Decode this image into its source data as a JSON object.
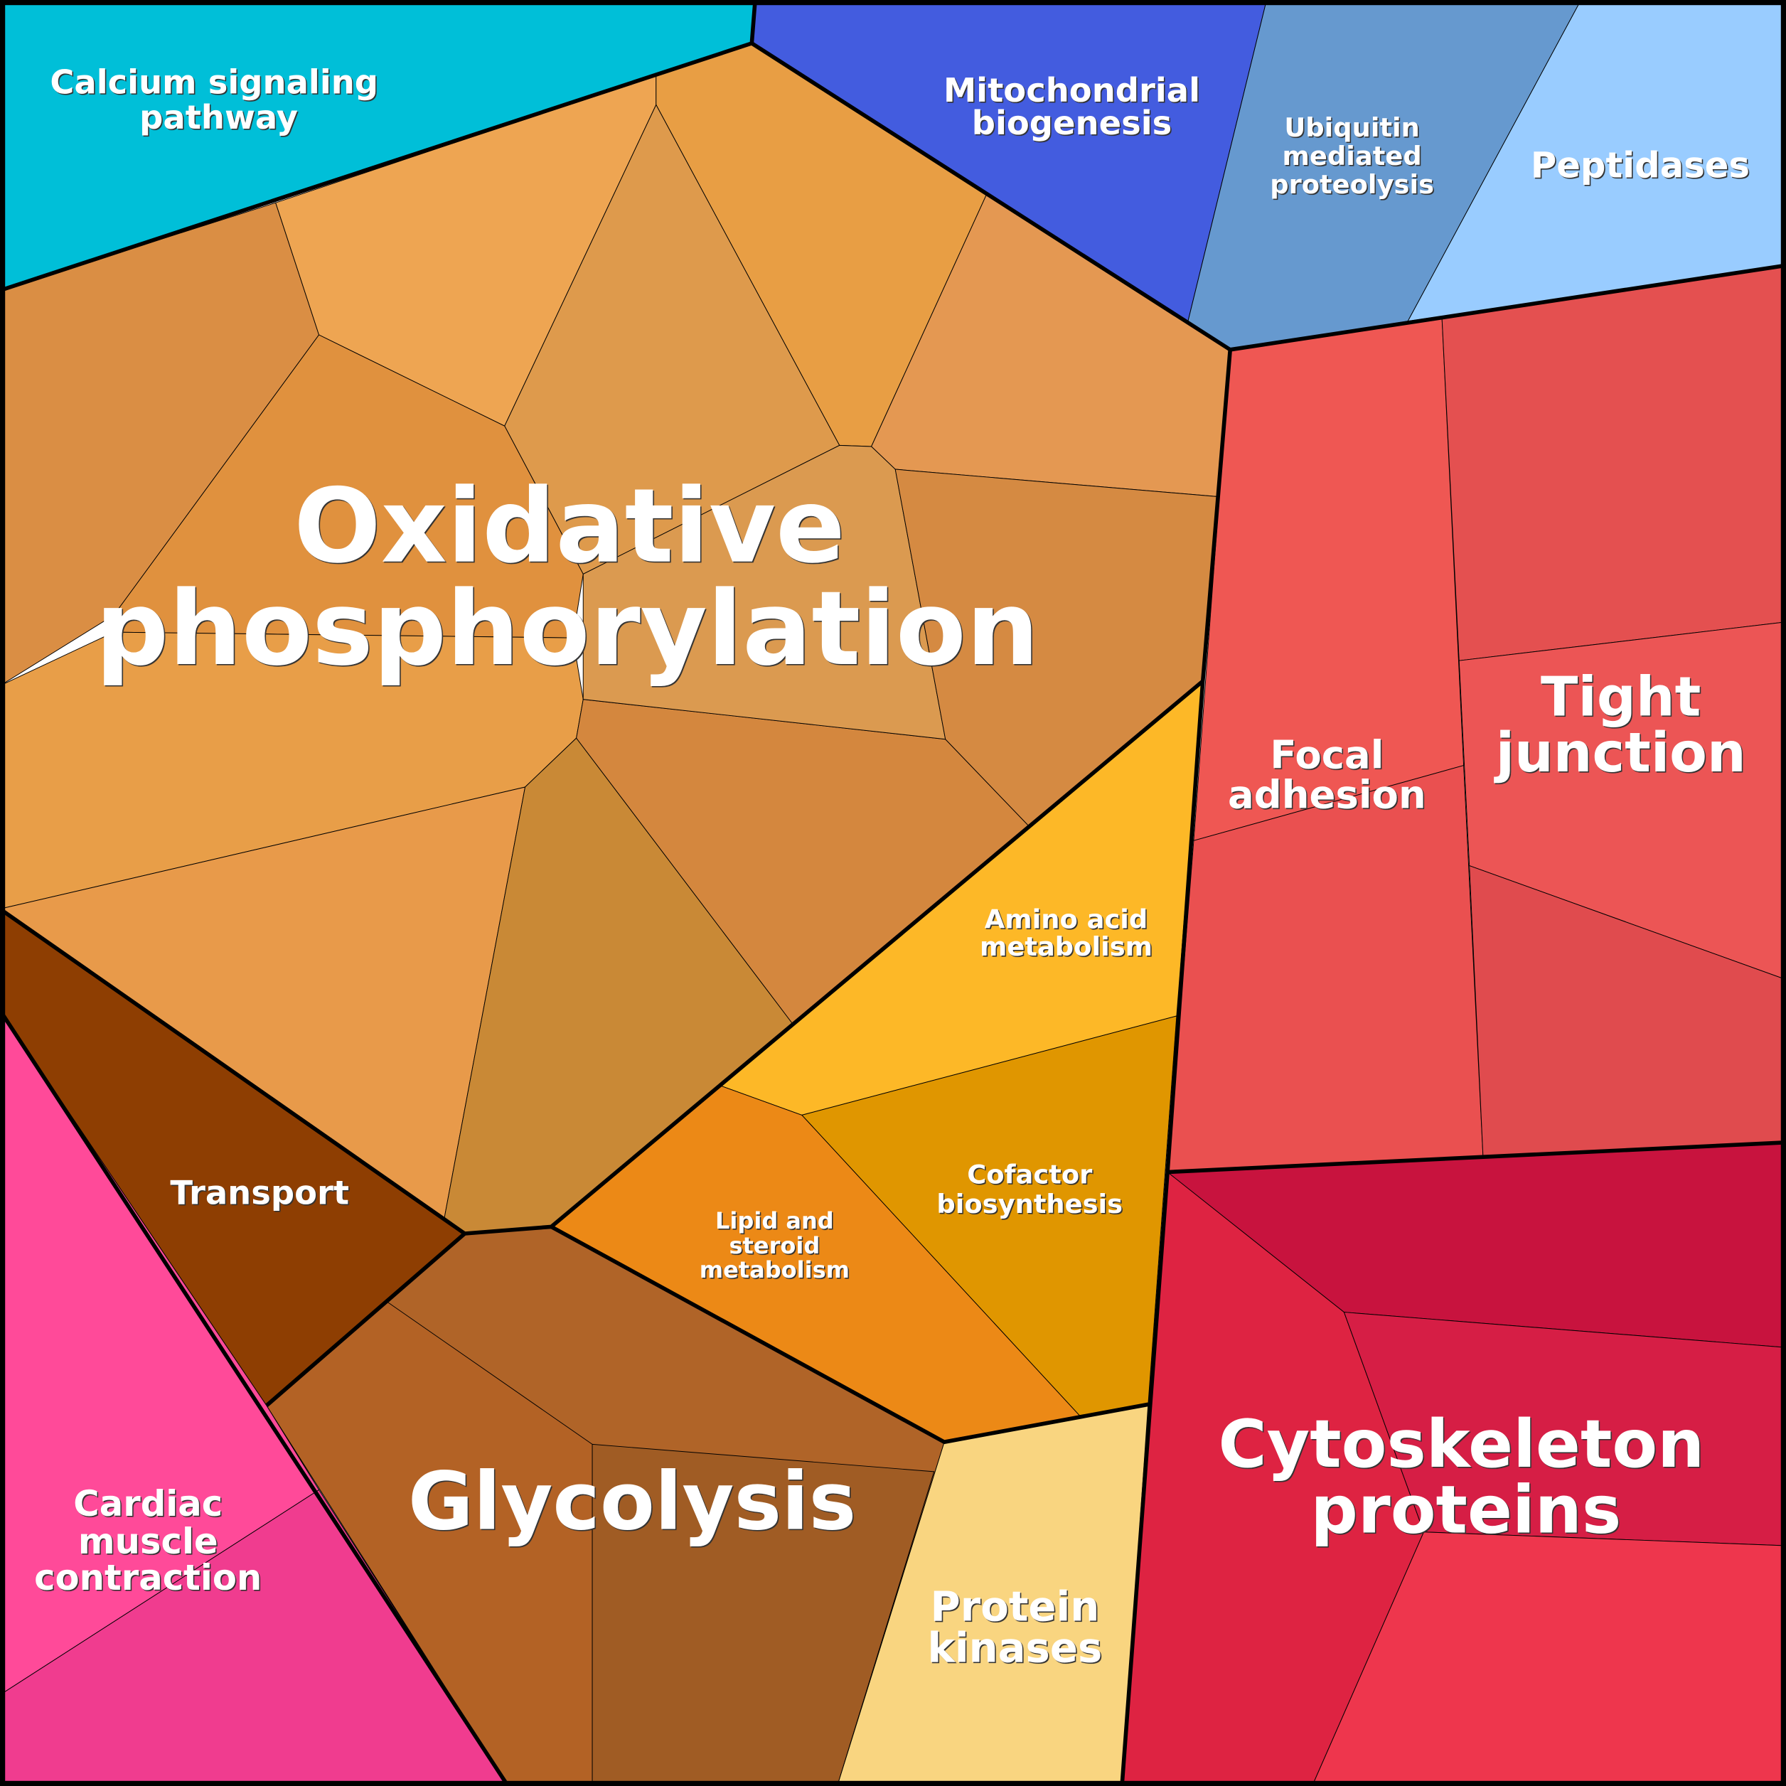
{
  "cells": [
    {
      "label": [
        "Calcium signaling",
        "pathway"
      ]
    },
    {
      "label": [
        "Mitochondrial",
        "biogenesis"
      ]
    },
    {
      "label": [
        "Ubiquitin",
        "mediated",
        "proteolysis"
      ]
    },
    {
      "label": [
        "Peptidases"
      ]
    },
    {
      "label": [
        "Oxidative",
        "phosphorylation"
      ]
    },
    {
      "label": [
        "Tight",
        "junction"
      ]
    },
    {
      "label": [
        "Focal",
        "adhesion"
      ]
    },
    {
      "label": [
        "Amino acid",
        "metabolism"
      ]
    },
    {
      "label": [
        "Cofactor",
        "biosynthesis"
      ]
    },
    {
      "label": [
        "Lipid and",
        "steroid",
        "metabolism"
      ]
    },
    {
      "label": [
        "Transport"
      ]
    },
    {
      "label": [
        "Glycolysis"
      ]
    },
    {
      "label": [
        "Cytoskeleton",
        "proteins"
      ]
    },
    {
      "label": [
        "Protein",
        "kinases"
      ]
    },
    {
      "label": [
        "Cardiac",
        "muscle",
        "contraction"
      ]
    }
  ]
}
